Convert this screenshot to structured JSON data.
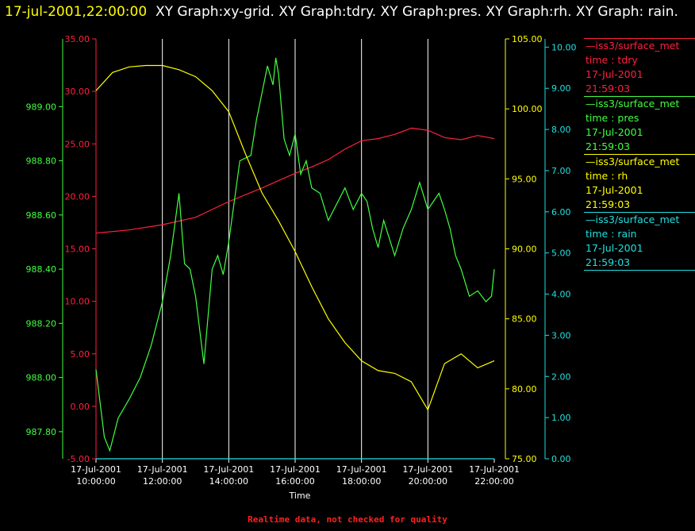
{
  "header": {
    "timestamp": "17-jul-2001,22:00:00",
    "graphs": "XY Graph:xy-grid.  XY Graph:tdry.  XY Graph:pres.  XY Graph:rh.  XY Graph: rain."
  },
  "footer": {
    "note": "Realtime data, not checked for quality"
  },
  "colors": {
    "tdry": "#ff2040",
    "pres": "#40ff40",
    "rh": "#ffff00",
    "rain": "#20e0e0",
    "grid": "#ffffff"
  },
  "chart_data": {
    "type": "line",
    "xlabel": "Time",
    "x_ticks": [
      {
        "date": "17-Jul-2001",
        "time": "10:00:00"
      },
      {
        "date": "17-Jul-2001",
        "time": "12:00:00"
      },
      {
        "date": "17-Jul-2001",
        "time": "14:00:00"
      },
      {
        "date": "17-Jul-2001",
        "time": "16:00:00"
      },
      {
        "date": "17-Jul-2001",
        "time": "18:00:00"
      },
      {
        "date": "17-Jul-2001",
        "time": "20:00:00"
      },
      {
        "date": "17-Jul-2001",
        "time": "22:00:00"
      }
    ],
    "xlim": [
      "2001-07-17T10:00",
      "2001-07-17T22:00"
    ],
    "axes": {
      "tdry": {
        "ylim": [
          -5,
          35
        ],
        "ticks": [
          "-5.00",
          "0.00",
          "5.00",
          "10.00",
          "15.00",
          "20.00",
          "25.00",
          "30.00",
          "35.00"
        ]
      },
      "pres": {
        "ylim": [
          987.7,
          989.25
        ],
        "ticks": [
          "987.80",
          "988.00",
          "988.20",
          "988.40",
          "988.60",
          "988.80",
          "989.00"
        ]
      },
      "rh": {
        "ylim": [
          75,
          105
        ],
        "ticks": [
          "75.00",
          "80.00",
          "85.00",
          "90.00",
          "95.00",
          "100.00",
          "105.00"
        ]
      },
      "rain": {
        "ylim": [
          0,
          10.2
        ],
        "ticks": [
          "0.00",
          "1.00",
          "2.00",
          "3.00",
          "4.00",
          "5.00",
          "6.00",
          "7.00",
          "8.00",
          "9.00",
          "10.00"
        ]
      }
    },
    "series": [
      {
        "key": "tdry",
        "name": "iss3/surface_met",
        "legend": [
          "time : tdry",
          "17-Jul-2001",
          "21:59:03"
        ],
        "x": [
          "10:00",
          "11:00",
          "12:00",
          "13:00",
          "14:00",
          "15:00",
          "16:00",
          "16:30",
          "17:00",
          "17:30",
          "18:00",
          "18:30",
          "19:00",
          "19:30",
          "20:00",
          "20:30",
          "21:00",
          "21:30",
          "22:00"
        ],
        "values": [
          16.5,
          16.8,
          17.3,
          18.0,
          19.5,
          20.8,
          22.2,
          22.8,
          23.5,
          24.5,
          25.3,
          25.5,
          25.9,
          26.5,
          26.3,
          25.6,
          25.4,
          25.8,
          25.5
        ]
      },
      {
        "key": "pres",
        "name": "iss3/surface_met",
        "legend": [
          "time : pres",
          "17-Jul-2001",
          "21:59:03"
        ],
        "x": [
          "10:00",
          "10:15",
          "10:25",
          "10:40",
          "11:00",
          "11:20",
          "11:40",
          "12:00",
          "12:15",
          "12:30",
          "12:40",
          "12:50",
          "13:00",
          "13:15",
          "13:30",
          "13:40",
          "13:50",
          "14:00",
          "14:20",
          "14:40",
          "14:50",
          "15:00",
          "15:10",
          "15:20",
          "15:25",
          "15:30",
          "15:40",
          "15:50",
          "16:00",
          "16:10",
          "16:20",
          "16:30",
          "16:45",
          "17:00",
          "17:30",
          "17:45",
          "18:00",
          "18:10",
          "18:20",
          "18:30",
          "18:40",
          "19:00",
          "19:15",
          "19:30",
          "19:45",
          "20:00",
          "20:20",
          "20:30",
          "20:40",
          "20:50",
          "21:00",
          "21:15",
          "21:30",
          "21:45",
          "21:55",
          "22:00"
        ],
        "values": [
          988.03,
          987.78,
          987.73,
          987.85,
          987.92,
          988.0,
          988.12,
          988.28,
          988.45,
          988.68,
          988.42,
          988.4,
          988.3,
          988.05,
          988.4,
          988.45,
          988.38,
          988.5,
          988.8,
          988.82,
          988.95,
          989.05,
          989.15,
          989.08,
          989.18,
          989.12,
          988.88,
          988.82,
          988.9,
          988.75,
          988.8,
          988.7,
          988.68,
          988.58,
          988.7,
          988.62,
          988.68,
          988.65,
          988.55,
          988.48,
          988.58,
          988.45,
          988.55,
          988.62,
          988.72,
          988.62,
          988.68,
          988.62,
          988.55,
          988.45,
          988.4,
          988.3,
          988.32,
          988.28,
          988.3,
          988.4
        ]
      },
      {
        "key": "rh",
        "name": "iss3/surface_met",
        "legend": [
          "time : rh",
          "17-Jul-2001",
          "21:59:03"
        ],
        "x": [
          "10:00",
          "10:30",
          "11:00",
          "11:30",
          "12:00",
          "12:30",
          "13:00",
          "13:30",
          "14:00",
          "14:30",
          "15:00",
          "15:30",
          "16:00",
          "16:30",
          "17:00",
          "17:30",
          "18:00",
          "18:30",
          "19:00",
          "19:30",
          "20:00",
          "20:30",
          "21:00",
          "21:30",
          "22:00"
        ],
        "values": [
          101.3,
          102.6,
          103.0,
          103.1,
          103.1,
          102.8,
          102.3,
          101.3,
          99.8,
          96.8,
          94.0,
          92.0,
          89.8,
          87.3,
          85.0,
          83.3,
          82.0,
          81.3,
          81.1,
          80.5,
          78.5,
          81.8,
          82.5,
          81.5,
          82.0
        ]
      },
      {
        "key": "rain",
        "name": "iss3/surface_met",
        "legend": [
          "time : rain",
          "17-Jul-2001",
          "21:59:03"
        ],
        "x": [
          "10:00",
          "22:00"
        ],
        "values": [
          0.0,
          0.0
        ]
      }
    ]
  }
}
